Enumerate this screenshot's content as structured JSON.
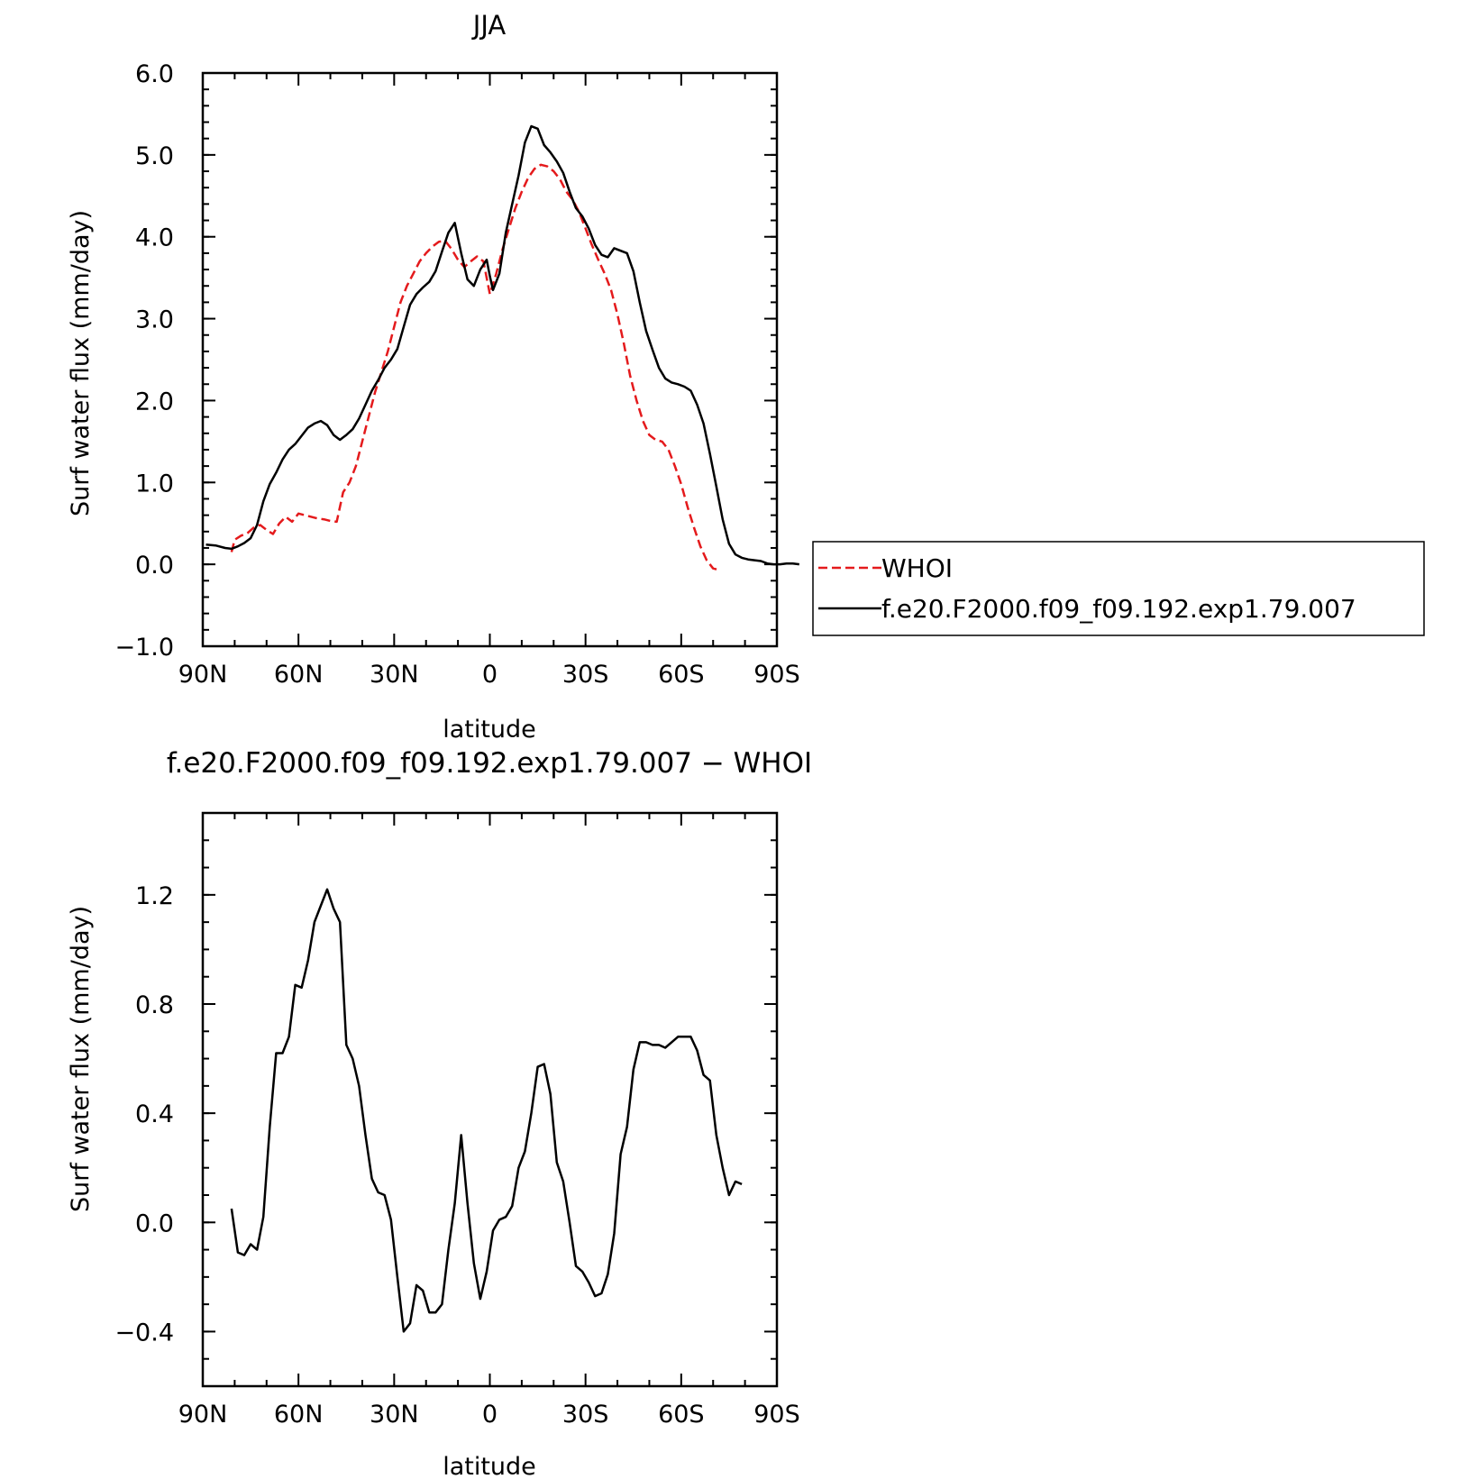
{
  "chart_data": [
    {
      "type": "line",
      "title": "JJA",
      "xlabel": "latitude",
      "ylabel": "Surf water flux (mm/day)",
      "xlim": [
        90,
        -90
      ],
      "ylim": [
        -1.0,
        6.0
      ],
      "x_ticks": [
        90,
        60,
        30,
        0,
        -30,
        -60,
        -90
      ],
      "x_tick_labels": [
        "90N",
        "60N",
        "30N",
        "0",
        "30S",
        "60S",
        "90S"
      ],
      "y_ticks": [
        -1,
        0,
        1,
        2,
        3,
        4,
        5,
        6
      ],
      "y_tick_labels": [
        "−1.0",
        "0.0",
        "1.0",
        "2.0",
        "3.0",
        "4.0",
        "5.0",
        "6.0"
      ],
      "legend_placement": "right",
      "series": [
        {
          "name": "WHOI",
          "color": "#e41a1c",
          "style": "dashed",
          "points": [
            [
              81,
              0.15
            ],
            [
              80,
              0.3
            ],
            [
              78,
              0.35
            ],
            [
              76,
              0.38
            ],
            [
              74,
              0.45
            ],
            [
              72,
              0.48
            ],
            [
              70,
              0.42
            ],
            [
              68,
              0.37
            ],
            [
              66,
              0.5
            ],
            [
              64,
              0.58
            ],
            [
              62,
              0.52
            ],
            [
              60,
              0.62
            ],
            [
              58,
              0.6
            ],
            [
              56,
              0.58
            ],
            [
              54,
              0.56
            ],
            [
              52,
              0.55
            ],
            [
              50,
              0.53
            ],
            [
              48,
              0.52
            ],
            [
              46,
              0.88
            ],
            [
              44,
              1.0
            ],
            [
              42,
              1.2
            ],
            [
              40,
              1.5
            ],
            [
              38,
              1.8
            ],
            [
              36,
              2.1
            ],
            [
              34,
              2.35
            ],
            [
              32,
              2.6
            ],
            [
              30,
              2.9
            ],
            [
              28,
              3.2
            ],
            [
              26,
              3.4
            ],
            [
              24,
              3.55
            ],
            [
              22,
              3.7
            ],
            [
              20,
              3.8
            ],
            [
              18,
              3.88
            ],
            [
              16,
              3.94
            ],
            [
              14,
              3.95
            ],
            [
              12,
              3.85
            ],
            [
              10,
              3.72
            ],
            [
              8,
              3.63
            ],
            [
              6,
              3.7
            ],
            [
              4,
              3.76
            ],
            [
              2,
              3.7
            ],
            [
              0,
              3.3
            ],
            [
              -2,
              3.55
            ],
            [
              -4,
              3.85
            ],
            [
              -6,
              4.1
            ],
            [
              -8,
              4.35
            ],
            [
              -10,
              4.55
            ],
            [
              -12,
              4.72
            ],
            [
              -14,
              4.83
            ],
            [
              -16,
              4.88
            ],
            [
              -18,
              4.86
            ],
            [
              -20,
              4.8
            ],
            [
              -22,
              4.7
            ],
            [
              -24,
              4.55
            ],
            [
              -26,
              4.45
            ],
            [
              -28,
              4.3
            ],
            [
              -30,
              4.1
            ],
            [
              -32,
              3.9
            ],
            [
              -34,
              3.72
            ],
            [
              -36,
              3.55
            ],
            [
              -38,
              3.35
            ],
            [
              -40,
              3.05
            ],
            [
              -42,
              2.7
            ],
            [
              -44,
              2.3
            ],
            [
              -46,
              2.0
            ],
            [
              -48,
              1.75
            ],
            [
              -50,
              1.58
            ],
            [
              -52,
              1.52
            ],
            [
              -54,
              1.5
            ],
            [
              -56,
              1.4
            ],
            [
              -58,
              1.2
            ],
            [
              -60,
              0.98
            ],
            [
              -62,
              0.7
            ],
            [
              -64,
              0.45
            ],
            [
              -66,
              0.22
            ],
            [
              -68,
              0.05
            ],
            [
              -70,
              -0.05
            ],
            [
              -72,
              -0.07
            ]
          ]
        },
        {
          "name": "f.e20.F2000.f09_f09.192.exp1.79.007",
          "color": "#000000",
          "style": "solid",
          "points": [
            [
              89,
              0.24
            ],
            [
              86,
              0.23
            ],
            [
              83,
              0.2
            ],
            [
              81,
              0.19
            ],
            [
              79,
              0.22
            ],
            [
              77,
              0.26
            ],
            [
              75,
              0.32
            ],
            [
              73,
              0.48
            ],
            [
              71,
              0.77
            ],
            [
              69,
              0.98
            ],
            [
              67,
              1.12
            ],
            [
              65,
              1.28
            ],
            [
              63,
              1.4
            ],
            [
              61,
              1.47
            ],
            [
              59,
              1.57
            ],
            [
              57,
              1.67
            ],
            [
              55,
              1.72
            ],
            [
              53,
              1.75
            ],
            [
              51,
              1.7
            ],
            [
              49,
              1.58
            ],
            [
              47,
              1.52
            ],
            [
              45,
              1.58
            ],
            [
              43,
              1.65
            ],
            [
              41,
              1.78
            ],
            [
              39,
              1.95
            ],
            [
              37,
              2.12
            ],
            [
              35,
              2.25
            ],
            [
              33,
              2.4
            ],
            [
              31,
              2.5
            ],
            [
              29,
              2.63
            ],
            [
              27,
              2.9
            ],
            [
              25,
              3.17
            ],
            [
              23,
              3.3
            ],
            [
              21,
              3.38
            ],
            [
              19,
              3.45
            ],
            [
              17,
              3.58
            ],
            [
              15,
              3.82
            ],
            [
              13,
              4.05
            ],
            [
              11,
              4.17
            ],
            [
              9,
              3.8
            ],
            [
              7,
              3.48
            ],
            [
              5,
              3.4
            ],
            [
              3,
              3.6
            ],
            [
              1,
              3.72
            ],
            [
              0,
              3.52
            ],
            [
              -1,
              3.35
            ],
            [
              -3,
              3.55
            ],
            [
              -5,
              4.05
            ],
            [
              -7,
              4.4
            ],
            [
              -9,
              4.75
            ],
            [
              -11,
              5.15
            ],
            [
              -13,
              5.35
            ],
            [
              -15,
              5.32
            ],
            [
              -17,
              5.12
            ],
            [
              -19,
              5.03
            ],
            [
              -21,
              4.92
            ],
            [
              -23,
              4.78
            ],
            [
              -25,
              4.55
            ],
            [
              -27,
              4.35
            ],
            [
              -29,
              4.25
            ],
            [
              -31,
              4.1
            ],
            [
              -33,
              3.9
            ],
            [
              -35,
              3.78
            ],
            [
              -37,
              3.75
            ],
            [
              -39,
              3.86
            ],
            [
              -41,
              3.83
            ],
            [
              -43,
              3.8
            ],
            [
              -45,
              3.58
            ],
            [
              -47,
              3.2
            ],
            [
              -49,
              2.85
            ],
            [
              -51,
              2.62
            ],
            [
              -53,
              2.4
            ],
            [
              -55,
              2.27
            ],
            [
              -57,
              2.22
            ],
            [
              -59,
              2.2
            ],
            [
              -61,
              2.17
            ],
            [
              -63,
              2.12
            ],
            [
              -65,
              1.95
            ],
            [
              -67,
              1.72
            ],
            [
              -69,
              1.35
            ],
            [
              -71,
              0.95
            ],
            [
              -73,
              0.55
            ],
            [
              -75,
              0.25
            ],
            [
              -77,
              0.12
            ],
            [
              -79,
              0.08
            ],
            [
              -81,
              0.06
            ],
            [
              -83,
              0.05
            ],
            [
              -85,
              0.04
            ],
            [
              -87,
              0.01
            ],
            [
              -89,
              0.0
            ],
            [
              -91,
              0.0
            ],
            [
              -93,
              0.01
            ],
            [
              -95,
              0.01
            ],
            [
              -97,
              0.0
            ]
          ]
        }
      ]
    },
    {
      "type": "line",
      "title": "f.e20.F2000.f09_f09.192.exp1.79.007 − WHOI",
      "xlabel": "latitude",
      "ylabel": "Surf water flux (mm/day)",
      "xlim": [
        90,
        -90
      ],
      "ylim": [
        -0.6,
        1.5
      ],
      "x_ticks": [
        90,
        60,
        30,
        0,
        -30,
        -60,
        -90
      ],
      "x_tick_labels": [
        "90N",
        "60N",
        "30N",
        "0",
        "30S",
        "60S",
        "90S"
      ],
      "y_ticks": [
        -0.4,
        0.0,
        0.4,
        0.8,
        1.2
      ],
      "y_tick_labels": [
        "−0.4",
        "0.0",
        "0.4",
        "0.8",
        "1.2"
      ],
      "series": [
        {
          "color": "#000000",
          "style": "solid",
          "points": [
            [
              81,
              0.05
            ],
            [
              79,
              -0.11
            ],
            [
              77,
              -0.12
            ],
            [
              75,
              -0.08
            ],
            [
              73,
              -0.1
            ],
            [
              71,
              0.02
            ],
            [
              69,
              0.35
            ],
            [
              67,
              0.62
            ],
            [
              65,
              0.62
            ],
            [
              63,
              0.68
            ],
            [
              61,
              0.87
            ],
            [
              59,
              0.86
            ],
            [
              57,
              0.96
            ],
            [
              55,
              1.1
            ],
            [
              53,
              1.16
            ],
            [
              51,
              1.22
            ],
            [
              49,
              1.15
            ],
            [
              47,
              1.1
            ],
            [
              45,
              0.65
            ],
            [
              43,
              0.6
            ],
            [
              41,
              0.5
            ],
            [
              39,
              0.32
            ],
            [
              37,
              0.16
            ],
            [
              35,
              0.11
            ],
            [
              33,
              0.1
            ],
            [
              31,
              0.01
            ],
            [
              29,
              -0.2
            ],
            [
              27,
              -0.4
            ],
            [
              25,
              -0.37
            ],
            [
              23,
              -0.23
            ],
            [
              21,
              -0.25
            ],
            [
              19,
              -0.33
            ],
            [
              17,
              -0.33
            ],
            [
              15,
              -0.3
            ],
            [
              13,
              -0.1
            ],
            [
              11,
              0.07
            ],
            [
              9,
              0.32
            ],
            [
              7,
              0.07
            ],
            [
              5,
              -0.15
            ],
            [
              3,
              -0.28
            ],
            [
              1,
              -0.18
            ],
            [
              -1,
              -0.03
            ],
            [
              -3,
              0.01
            ],
            [
              -5,
              0.02
            ],
            [
              -7,
              0.06
            ],
            [
              -9,
              0.2
            ],
            [
              -11,
              0.26
            ],
            [
              -13,
              0.4
            ],
            [
              -15,
              0.57
            ],
            [
              -17,
              0.58
            ],
            [
              -19,
              0.47
            ],
            [
              -21,
              0.22
            ],
            [
              -23,
              0.15
            ],
            [
              -25,
              0.0
            ],
            [
              -27,
              -0.16
            ],
            [
              -29,
              -0.18
            ],
            [
              -31,
              -0.22
            ],
            [
              -33,
              -0.27
            ],
            [
              -35,
              -0.26
            ],
            [
              -37,
              -0.19
            ],
            [
              -39,
              -0.04
            ],
            [
              -41,
              0.25
            ],
            [
              -43,
              0.35
            ],
            [
              -45,
              0.56
            ],
            [
              -47,
              0.66
            ],
            [
              -49,
              0.66
            ],
            [
              -51,
              0.65
            ],
            [
              -53,
              0.65
            ],
            [
              -55,
              0.64
            ],
            [
              -57,
              0.66
            ],
            [
              -59,
              0.68
            ],
            [
              -61,
              0.68
            ],
            [
              -63,
              0.68
            ],
            [
              -65,
              0.63
            ],
            [
              -67,
              0.54
            ],
            [
              -69,
              0.52
            ],
            [
              -71,
              0.32
            ],
            [
              -73,
              0.2
            ],
            [
              -75,
              0.1
            ],
            [
              -77,
              0.15
            ],
            [
              -79,
              0.14
            ]
          ]
        }
      ]
    }
  ]
}
